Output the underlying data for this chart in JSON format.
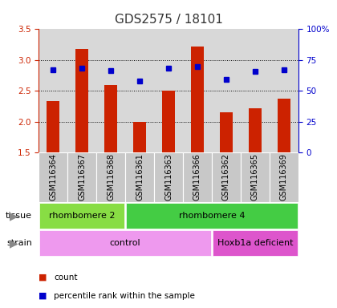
{
  "title": "GDS2575 / 18101",
  "samples": [
    "GSM116364",
    "GSM116367",
    "GSM116368",
    "GSM116361",
    "GSM116363",
    "GSM116366",
    "GSM116362",
    "GSM116365",
    "GSM116369"
  ],
  "count_values": [
    2.33,
    3.18,
    2.6,
    2.0,
    2.5,
    3.22,
    2.15,
    2.22,
    2.37
  ],
  "percentile_values": [
    2.84,
    2.87,
    2.83,
    2.66,
    2.87,
    2.9,
    2.69,
    2.81,
    2.84
  ],
  "y_min": 1.5,
  "y_max": 3.5,
  "y_ticks_left": [
    1.5,
    2.0,
    2.5,
    3.0,
    3.5
  ],
  "y_ticks_right": [
    0,
    25,
    50,
    75,
    100
  ],
  "bar_color": "#cc2200",
  "dot_color": "#0000cc",
  "tissue_groups": [
    {
      "label": "rhombomere 2",
      "start": 0,
      "end": 3,
      "color": "#88dd44"
    },
    {
      "label": "rhombomere 4",
      "start": 3,
      "end": 9,
      "color": "#44cc44"
    }
  ],
  "strain_groups": [
    {
      "label": "control",
      "start": 0,
      "end": 6,
      "color": "#ee99ee"
    },
    {
      "label": "Hoxb1a deficient",
      "start": 6,
      "end": 9,
      "color": "#dd55cc"
    }
  ],
  "legend_count_label": "count",
  "legend_pct_label": "percentile rank within the sample",
  "plot_bg_color": "#d8d8d8",
  "sample_bg_color": "#c8c8c8",
  "fig_bg_color": "#ffffff",
  "grid_color": "#000000",
  "label_fontsize": 7.0,
  "tick_fontsize": 7.5,
  "title_fontsize": 11,
  "arrow_color": "#888888"
}
